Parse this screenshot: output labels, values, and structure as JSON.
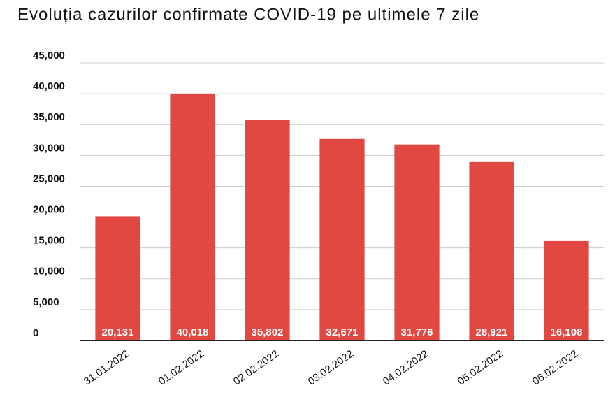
{
  "chart_data": {
    "type": "bar",
    "title": "Evoluția cazurilor confirmate COVID-19 pe ultimele 7 zile",
    "categories": [
      "31.01.2022",
      "01.02.2022",
      "02.02.2022",
      "03.02.2022",
      "04.02.2022",
      "05.02.2022",
      "06.02.2022"
    ],
    "values": [
      20131,
      40018,
      35802,
      32671,
      31776,
      28921,
      16108
    ],
    "value_labels": [
      "20,131",
      "40,018",
      "35,802",
      "32,671",
      "31,776",
      "28,921",
      "16,108"
    ],
    "color": "#e04841",
    "ylim": [
      0,
      45000
    ],
    "yticks": [
      0,
      {
        "value": 5000,
        "label": "5,000"
      },
      {
        "value": 10000,
        "label": "10,000"
      },
      {
        "value": 15000,
        "label": "15,000"
      },
      {
        "value": 20000,
        "label": "20,000"
      },
      {
        "value": 25000,
        "label": "25,000"
      },
      {
        "value": 30000,
        "label": "30,000"
      },
      {
        "value": 35000,
        "label": "35,000"
      },
      {
        "value": 40000,
        "label": "40,000"
      },
      {
        "value": 45000,
        "label": "45,000"
      }
    ],
    "grid": true
  }
}
